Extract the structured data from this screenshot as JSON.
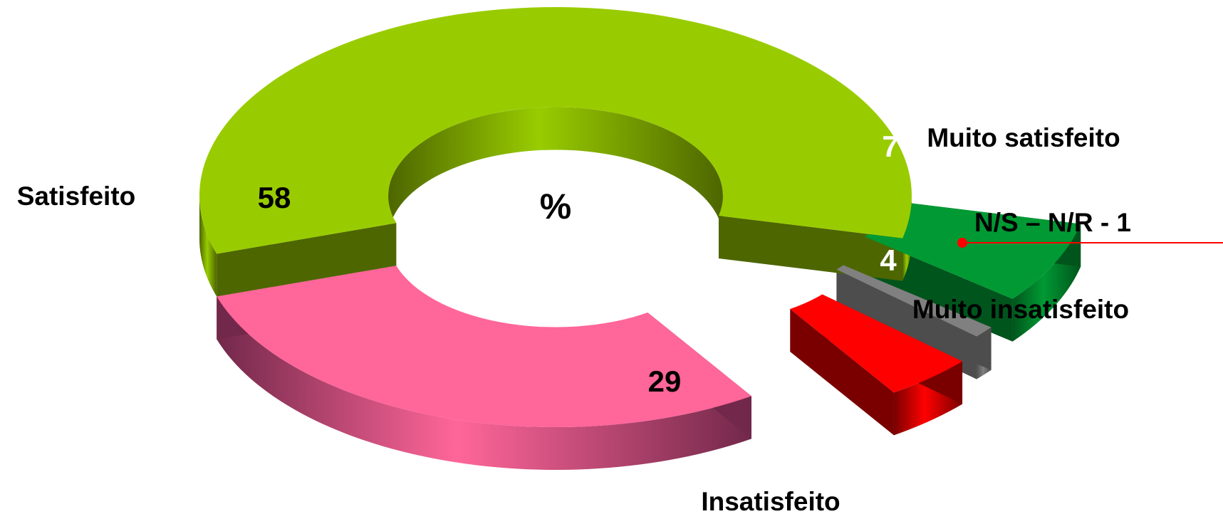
{
  "chart_data": {
    "type": "pie",
    "variant": "3d-exploded-donut",
    "center_label": "%",
    "slices": [
      {
        "key": "muito_satisfeito",
        "category": "Muito satisfeito",
        "value": 7,
        "value_label": "7",
        "color": "#009933",
        "dark": "#00551c",
        "value_color": "#ffffff"
      },
      {
        "key": "ns_nr",
        "category": "N/S – N/R - 1",
        "value": 1,
        "value_label": "",
        "color": "#808080",
        "dark": "#4d4d4d",
        "value_color": "#000000"
      },
      {
        "key": "muito_insatisfeito",
        "category": "Muito insatisfeito",
        "value": 4,
        "value_label": "4",
        "color": "#ff0000",
        "dark": "#7a0000",
        "value_color": "#ffffff"
      },
      {
        "key": "insatisfeito",
        "category": "Insatisfeito",
        "value": 29,
        "value_label": "29",
        "color": "#ff6699",
        "dark": "#72284a",
        "value_color": "#000000"
      },
      {
        "key": "satisfeito",
        "category": "Satisfeito",
        "value": 58,
        "value_label": "58",
        "color": "#99cc00",
        "dark": "#4d6600",
        "value_color": "#000000"
      }
    ],
    "legend": "none",
    "leader_line_color": "#ff0000"
  }
}
